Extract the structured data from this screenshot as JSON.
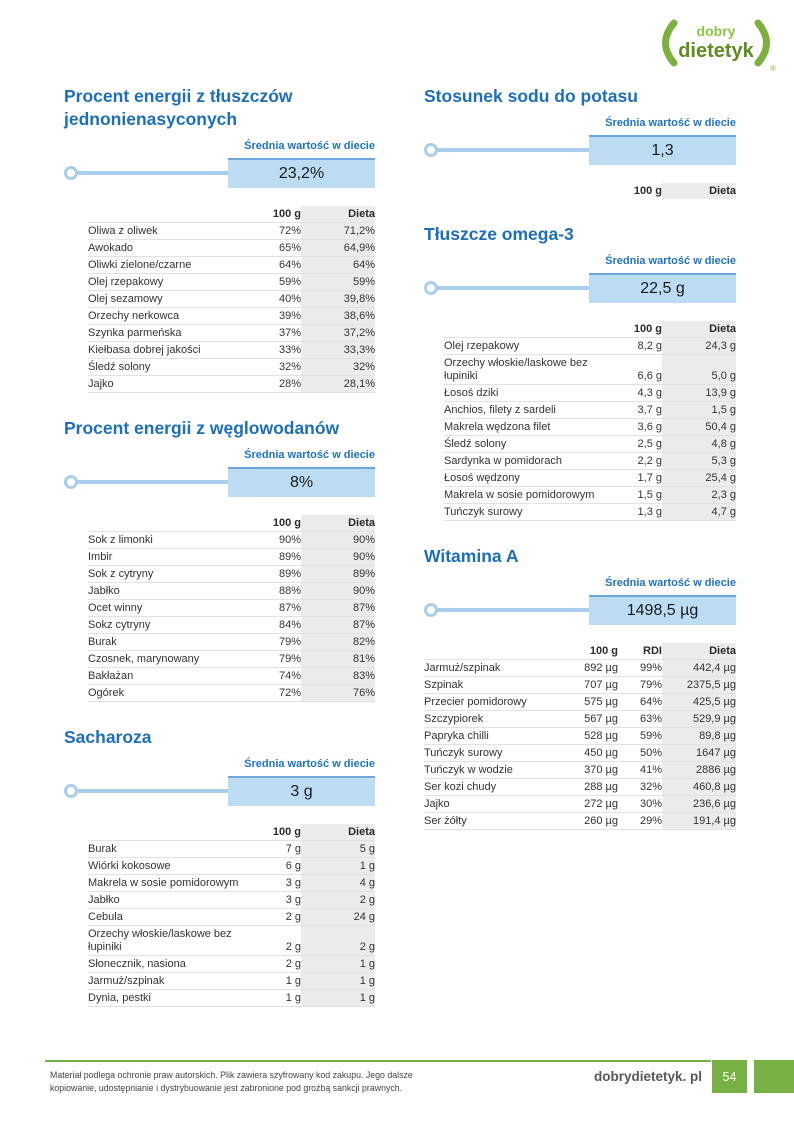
{
  "labels": {
    "avg": "Średnia wartość w diecie"
  },
  "logo": {
    "top": "dobry",
    "name": "dietetyk",
    "reg": "®"
  },
  "sections": {
    "monounsaturated_fat_energy": {
      "title": "Procent energii z tłuszczów jednonienasyconych",
      "avg_value": "23,2%",
      "columns": [
        "100 g",
        "Dieta"
      ],
      "rows": [
        [
          "Oliwa z oliwek",
          "72%",
          "71,2%"
        ],
        [
          "Awokado",
          "65%",
          "64,9%"
        ],
        [
          "Oliwki zielone/czarne",
          "64%",
          "64%"
        ],
        [
          "Olej rzepakowy",
          "59%",
          "59%"
        ],
        [
          "Olej sezamowy",
          "40%",
          "39,8%"
        ],
        [
          "Orzechy nerkowca",
          "39%",
          "38,6%"
        ],
        [
          "Szynka parmeńska",
          "37%",
          "37,2%"
        ],
        [
          "Kiełbasa dobrej jakości",
          "33%",
          "33,3%"
        ],
        [
          "Śledź solony",
          "32%",
          "32%"
        ],
        [
          "Jajko",
          "28%",
          "28,1%"
        ]
      ]
    },
    "carbohydrate_energy": {
      "title": "Procent energii z węglowodanów",
      "avg_value": "8%",
      "columns": [
        "100 g",
        "Dieta"
      ],
      "rows": [
        [
          "Sok z limonki",
          "90%",
          "90%"
        ],
        [
          "Imbir",
          "89%",
          "90%"
        ],
        [
          "Sok z cytryny",
          "89%",
          "89%"
        ],
        [
          "Jabłko",
          "88%",
          "90%"
        ],
        [
          "Ocet winny",
          "87%",
          "87%"
        ],
        [
          "Sokz cytryny",
          "84%",
          "87%"
        ],
        [
          "Burak",
          "79%",
          "82%"
        ],
        [
          "Czosnek, marynowany",
          "79%",
          "81%"
        ],
        [
          "Bakłażan",
          "74%",
          "83%"
        ],
        [
          "Ogórek",
          "72%",
          "76%"
        ]
      ]
    },
    "sucrose": {
      "title": "Sacharoza",
      "avg_value": "3 g",
      "columns": [
        "100 g",
        "Dieta"
      ],
      "rows": [
        [
          "Burak",
          "7 g",
          "5 g"
        ],
        [
          "Wiórki kokosowe",
          "6 g",
          "1 g"
        ],
        [
          "Makrela w sosie pomidorowym",
          "3 g",
          "4 g"
        ],
        [
          "Jabłko",
          "3 g",
          "2 g"
        ],
        [
          "Cebula",
          "2 g",
          "24 g"
        ],
        [
          "Orzechy włoskie/laskowe bez łupiniki",
          "2 g",
          "2 g"
        ],
        [
          "Słonecznik, nasiona",
          "2 g",
          "1 g"
        ],
        [
          "Jarmuż/szpinak",
          "1 g",
          "1 g"
        ],
        [
          "Dynia, pestki",
          "1 g",
          "1 g"
        ]
      ]
    },
    "sodium_potassium_ratio": {
      "title": "Stosunek sodu do potasu",
      "avg_value": "1,3",
      "columns": [
        "100 g",
        "Dieta"
      ],
      "rows": []
    },
    "omega3_fats": {
      "title": "Tłuszcze omega-3",
      "avg_value": "22,5 g",
      "columns": [
        "100 g",
        "Dieta"
      ],
      "rows": [
        [
          "Olej rzepakowy",
          "8,2 g",
          "24,3 g"
        ],
        [
          "Orzechy włoskie/laskowe bez łupiniki",
          "6,6 g",
          "5,0 g"
        ],
        [
          "Łosoś dziki",
          "4,3 g",
          "13,9 g"
        ],
        [
          "Anchios, filety z sardeli",
          "3,7 g",
          "1,5 g"
        ],
        [
          "Makrela wędzona filet",
          "3,6 g",
          "50,4 g"
        ],
        [
          "Śledź solony",
          "2,5 g",
          "4,8 g"
        ],
        [
          "Sardynka w pomidorach",
          "2,2 g",
          "5,3 g"
        ],
        [
          "Łosoś wędzony",
          "1,7 g",
          "25,4 g"
        ],
        [
          "Makrela w sosie pomidorowym",
          "1,5 g",
          "2,3 g"
        ],
        [
          "Tuńczyk surowy",
          "1,3 g",
          "4,7 g"
        ]
      ]
    },
    "vitamin_a": {
      "title": "Witamina A",
      "avg_value": "1498,5 µg",
      "columns": [
        "100 g",
        "RDI",
        "Dieta"
      ],
      "rows": [
        [
          "Jarmuż/szpinak",
          "892 µg",
          "99%",
          "442,4 µg"
        ],
        [
          "Szpinak",
          "707 µg",
          "79%",
          "2375,5 µg"
        ],
        [
          "Przecier pomidorowy",
          "575 µg",
          "64%",
          "425,5 µg"
        ],
        [
          "Szczypiorek",
          "567 µg",
          "63%",
          "529,9 µg"
        ],
        [
          "Papryka chilli",
          "528 µg",
          "59%",
          "89,8 µg"
        ],
        [
          "Tuńczyk surowy",
          "450 µg",
          "50%",
          "1647 µg"
        ],
        [
          "Tuńczyk w wodzie",
          "370 µg",
          "41%",
          "2886 µg"
        ],
        [
          "Ser kozi chudy",
          "288 µg",
          "32%",
          "460,8 µg"
        ],
        [
          "Jajko",
          "272 µg",
          "30%",
          "236,6 µg"
        ],
        [
          "Ser żółty",
          "260 µg",
          "29%",
          "191,4 µg"
        ]
      ]
    }
  },
  "footer": {
    "copyright_line1": "Materiał podlega ochronie praw autorskich. Plik zawiera szyfrowany kod zakupu. Jego dalsze",
    "copyright_line2": "kopiowanie, udostępnianie i dystrybuowanie jest zabronione pod groźbą sankcji prawnych.",
    "site": "dobrydietetyk. pl",
    "page_number": "54"
  },
  "colors": {
    "accent_blue": "#1c6fb8",
    "value_box_fill": "#bcdcf4",
    "value_box_border": "#6ea6d9",
    "indicator_blue": "#a9cdec",
    "table_stripe_gray": "#ebebeb",
    "brand_green": "#77b144",
    "brand_green_light": "#8dc63f",
    "brand_green_dark": "#5f8c22"
  }
}
